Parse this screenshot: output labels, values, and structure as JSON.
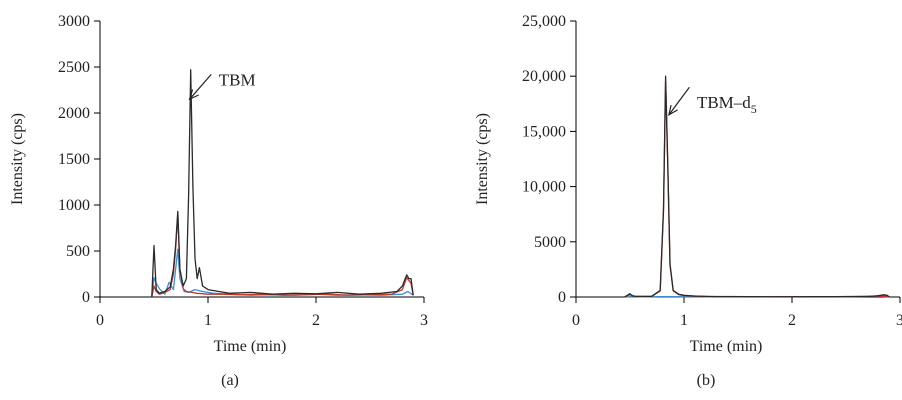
{
  "chart_data": [
    {
      "type": "line",
      "panel_label": "(a)",
      "xlabel": "Time (min)",
      "ylabel": "Intensity (cps)",
      "xlim": [
        0,
        3
      ],
      "ylim": [
        0,
        3000
      ],
      "x_ticks": [
        0,
        1,
        2,
        3
      ],
      "x_tick_labels": [
        "0",
        "1",
        "2",
        "3"
      ],
      "y_ticks": [
        0,
        500,
        1000,
        1500,
        2000,
        2500,
        3000
      ],
      "y_tick_labels": [
        "0",
        "500",
        "1000",
        "1500",
        "2000",
        "2500",
        "3000"
      ],
      "annotation": {
        "text": "TBM",
        "sub": "",
        "point": [
          0.83,
          2150
        ],
        "arrow_from": [
          1.03,
          2420
        ],
        "text_at": [
          1.1,
          2300
        ]
      },
      "series": [
        {
          "color": "#2a2a2a",
          "x": [
            0.48,
            0.5,
            0.52,
            0.55,
            0.6,
            0.65,
            0.68,
            0.7,
            0.72,
            0.74,
            0.77,
            0.8,
            0.82,
            0.84,
            0.86,
            0.88,
            0.9,
            0.92,
            0.95,
            1.0,
            1.1,
            1.2,
            1.4,
            1.6,
            1.8,
            2.0,
            2.2,
            2.4,
            2.6,
            2.75,
            2.8,
            2.84,
            2.86,
            2.88,
            2.9
          ],
          "y": [
            0,
            560,
            80,
            40,
            60,
            110,
            300,
            560,
            930,
            300,
            120,
            200,
            1100,
            2470,
            1200,
            420,
            200,
            320,
            120,
            80,
            60,
            40,
            50,
            30,
            40,
            35,
            50,
            30,
            40,
            60,
            120,
            240,
            200,
            200,
            20
          ]
        },
        {
          "color": "#c0392b",
          "x": [
            0.48,
            0.5,
            0.52,
            0.55,
            0.6,
            0.65,
            0.68,
            0.7,
            0.72,
            0.74,
            0.77,
            0.8,
            0.85,
            0.9,
            1.0,
            1.1,
            1.3,
            1.5,
            1.7,
            1.9,
            2.1,
            2.3,
            2.5,
            2.7,
            2.8,
            2.84,
            2.88,
            2.9
          ],
          "y": [
            0,
            120,
            60,
            30,
            50,
            80,
            250,
            520,
            900,
            300,
            90,
            60,
            50,
            40,
            30,
            30,
            25,
            30,
            20,
            25,
            30,
            20,
            25,
            30,
            80,
            210,
            150,
            20
          ]
        },
        {
          "color": "#3b8fd4",
          "x": [
            0.48,
            0.5,
            0.52,
            0.55,
            0.6,
            0.64,
            0.68,
            0.7,
            0.72,
            0.74,
            0.78,
            0.82,
            0.88,
            0.95,
            1.05,
            1.2,
            1.4,
            1.6,
            1.8,
            2.0,
            2.2,
            2.4,
            2.6,
            2.8,
            2.85,
            2.9
          ],
          "y": [
            0,
            210,
            150,
            90,
            30,
            160,
            80,
            300,
            520,
            200,
            60,
            50,
            80,
            60,
            40,
            30,
            20,
            25,
            20,
            30,
            20,
            25,
            20,
            30,
            60,
            20
          ]
        }
      ]
    },
    {
      "type": "line",
      "panel_label": "(b)",
      "xlabel": "Time (min)",
      "ylabel": "Intensity (cps)",
      "xlim": [
        0,
        3
      ],
      "ylim": [
        0,
        25000
      ],
      "x_ticks": [
        0,
        1,
        2,
        3
      ],
      "x_tick_labels": [
        "0",
        "1",
        "2",
        "3"
      ],
      "y_ticks": [
        0,
        5000,
        10000,
        15000,
        20000,
        25000
      ],
      "y_tick_labels": [
        "0",
        "5000",
        "10,000",
        "15,000",
        "20,000",
        "25,000"
      ],
      "annotation": {
        "text": "TBM–d",
        "sub": "5",
        "point": [
          0.86,
          16500
        ],
        "arrow_from": [
          1.05,
          19000
        ],
        "text_at": [
          1.12,
          17100
        ]
      },
      "series": [
        {
          "color": "#2a2a2a",
          "x": [
            0.45,
            0.5,
            0.52,
            0.55,
            0.6,
            0.7,
            0.78,
            0.81,
            0.83,
            0.85,
            0.87,
            0.9,
            0.95,
            1.0,
            1.1,
            1.3,
            1.6,
            2.0,
            2.4,
            2.7,
            2.8,
            2.85,
            2.88,
            2.9
          ],
          "y": [
            0,
            300,
            100,
            50,
            50,
            60,
            600,
            8000,
            20000,
            12000,
            3000,
            600,
            250,
            150,
            80,
            40,
            30,
            20,
            30,
            40,
            120,
            200,
            150,
            20
          ]
        },
        {
          "color": "#c0392b",
          "x": [
            0.45,
            0.5,
            0.55,
            0.7,
            0.78,
            0.81,
            0.83,
            0.85,
            0.87,
            0.9,
            0.95,
            1.0,
            1.2,
            1.6,
            2.0,
            2.4,
            2.8,
            2.9
          ],
          "y": [
            0,
            200,
            50,
            50,
            550,
            7800,
            19500,
            11800,
            2900,
            550,
            220,
            120,
            50,
            30,
            20,
            25,
            80,
            20
          ]
        },
        {
          "color": "#3b8fd4",
          "x": [
            0.45,
            0.5,
            0.6,
            0.8,
            1.0,
            1.5,
            2.0,
            2.5,
            2.8,
            2.85,
            2.9
          ],
          "y": [
            0,
            30,
            20,
            40,
            30,
            20,
            20,
            20,
            80,
            120,
            20
          ]
        }
      ]
    }
  ]
}
